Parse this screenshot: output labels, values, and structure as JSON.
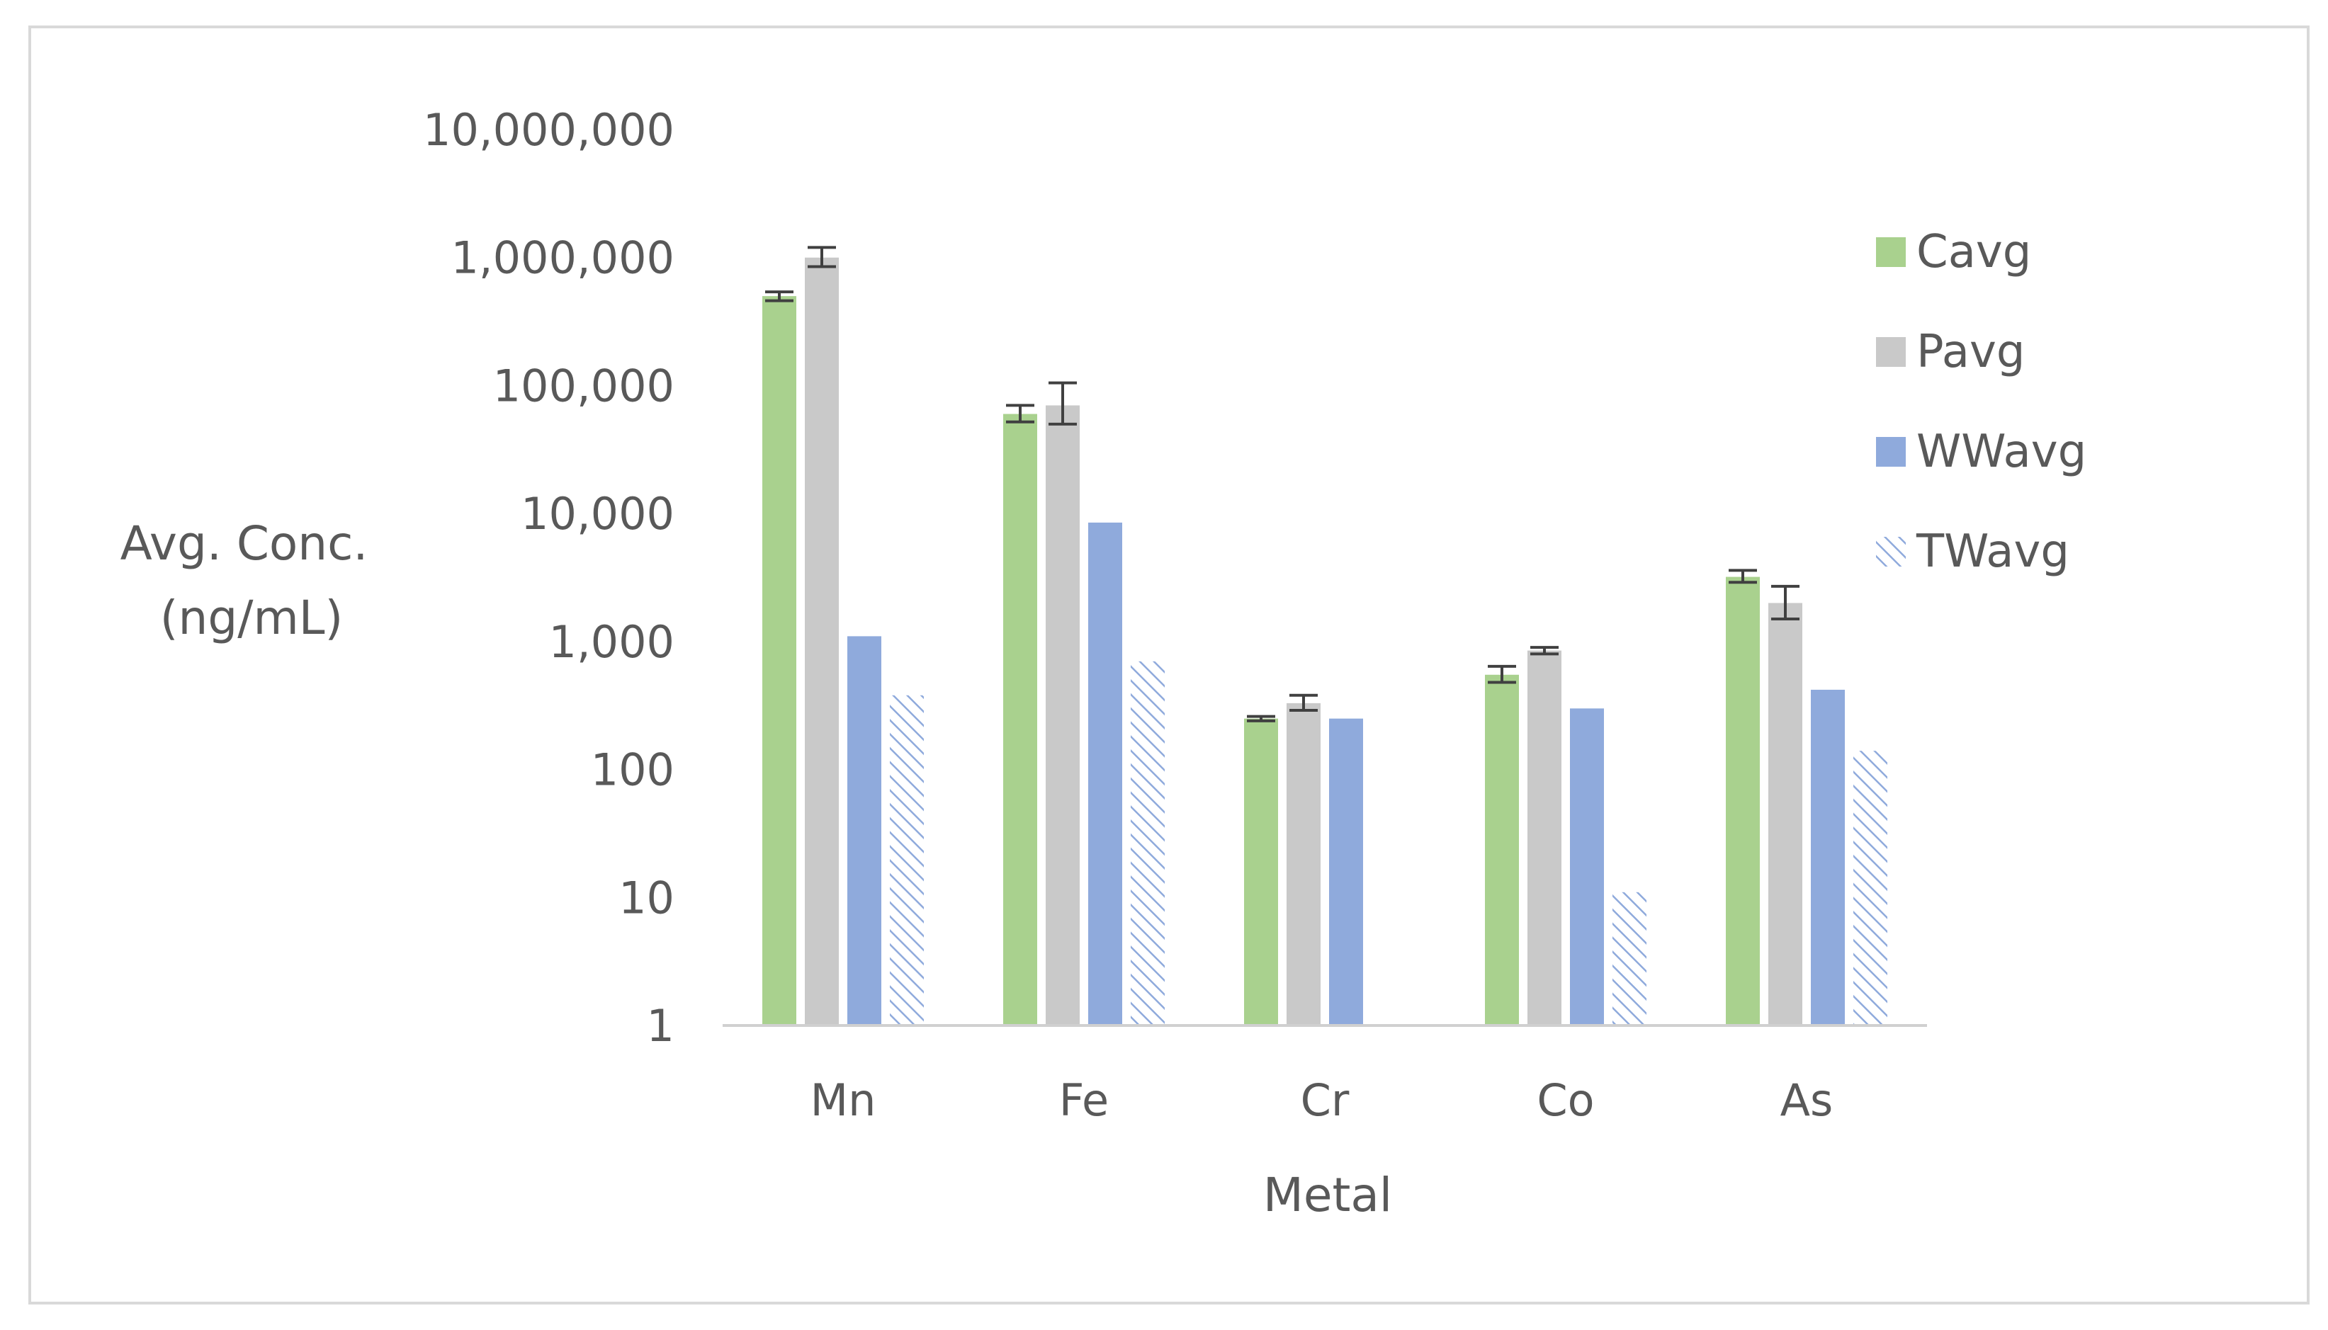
{
  "chart_data": {
    "type": "bar",
    "scale": "log",
    "categories": [
      "Mn",
      "Fe",
      "Cr",
      "Co",
      "As"
    ],
    "xlabel": "Metal",
    "ylabel_lines": [
      "Avg. Conc.",
      "(ng/mL)"
    ],
    "ylim": [
      1,
      10000000
    ],
    "y_ticks": [
      1,
      10,
      100,
      1000,
      10000,
      100000,
      1000000,
      10000000
    ],
    "y_tick_labels": [
      "1",
      "10",
      "100",
      "1,000",
      "10,000",
      "100,000",
      "1,000,000",
      "10,000,000"
    ],
    "grid": false,
    "legend_position": "right",
    "series": [
      {
        "name": "Cavg",
        "color": "#a9d18e",
        "pattern": "solid",
        "values": [
          500000,
          60000,
          250,
          550,
          3200
        ],
        "err_low": [
          460000,
          52000,
          240,
          480,
          2900
        ],
        "err_high": [
          540000,
          70000,
          260,
          640,
          3600
        ]
      },
      {
        "name": "Pavg",
        "color": "#c9c9c9",
        "pattern": "solid",
        "values": [
          1000000,
          70000,
          330,
          850,
          2000
        ],
        "err_low": [
          850000,
          50000,
          290,
          800,
          1500
        ],
        "err_high": [
          1200000,
          105000,
          380,
          900,
          2700
        ]
      },
      {
        "name": "WWavg",
        "color": "#8faadc",
        "pattern": "solid",
        "values": [
          1100,
          8500,
          250,
          300,
          420
        ]
      },
      {
        "name": "TWavg",
        "color": "#8faadc",
        "pattern": "hatch",
        "values": [
          380,
          700,
          null,
          11,
          140
        ]
      }
    ]
  }
}
